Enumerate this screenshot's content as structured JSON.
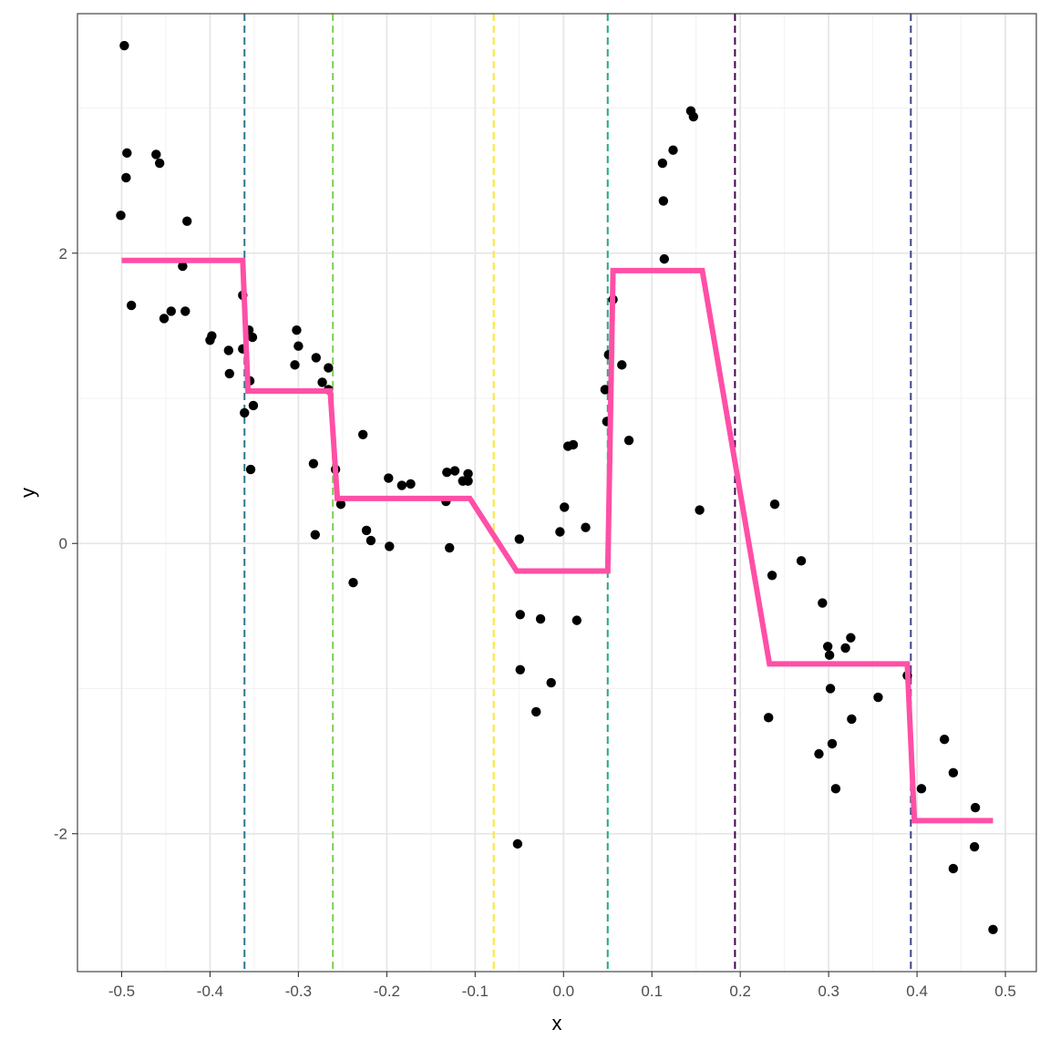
{
  "chart_data": {
    "type": "scatter",
    "title": "",
    "xlabel": "x",
    "ylabel": "y",
    "xlim": [
      -0.55,
      0.535
    ],
    "ylim": [
      -2.95,
      3.65
    ],
    "x_ticks": [
      -0.5,
      -0.4,
      -0.3,
      -0.2,
      -0.1,
      0.0,
      0.1,
      0.2,
      0.3,
      0.4,
      0.5
    ],
    "x_tick_labels": [
      "-0.5",
      "-0.4",
      "-0.3",
      "-0.2",
      "-0.1",
      "0.0",
      "0.1",
      "0.2",
      "0.3",
      "0.4",
      "0.5"
    ],
    "y_ticks": [
      -2,
      0,
      2
    ],
    "y_tick_labels": [
      "-2",
      "0",
      "2"
    ],
    "grid": true,
    "legend": "none",
    "colors": {
      "points": "#000000",
      "fit_line": "#ff4fa6",
      "panel_border": "#333333",
      "grid_major": "#e6e6e6",
      "grid_minor": "#f2f2f2"
    },
    "points": [
      [
        -0.497,
        3.43
      ],
      [
        -0.494,
        2.69
      ],
      [
        -0.495,
        2.52
      ],
      [
        -0.501,
        2.26
      ],
      [
        -0.461,
        2.68
      ],
      [
        -0.457,
        2.62
      ],
      [
        -0.426,
        2.22
      ],
      [
        -0.431,
        1.91
      ],
      [
        -0.489,
        1.64
      ],
      [
        -0.444,
        1.6
      ],
      [
        -0.428,
        1.6
      ],
      [
        -0.452,
        1.55
      ],
      [
        -0.398,
        1.43
      ],
      [
        -0.4,
        1.4
      ],
      [
        -0.379,
        1.33
      ],
      [
        -0.378,
        1.17
      ],
      [
        -0.363,
        1.71
      ],
      [
        -0.363,
        1.34
      ],
      [
        -0.356,
        1.47
      ],
      [
        -0.352,
        1.42
      ],
      [
        -0.355,
        1.12
      ],
      [
        -0.361,
        0.9
      ],
      [
        -0.351,
        0.95
      ],
      [
        -0.354,
        0.51
      ],
      [
        -0.302,
        1.47
      ],
      [
        -0.3,
        1.36
      ],
      [
        -0.304,
        1.23
      ],
      [
        -0.28,
        1.28
      ],
      [
        -0.273,
        1.11
      ],
      [
        -0.266,
        1.21
      ],
      [
        -0.266,
        1.06
      ],
      [
        -0.283,
        0.55
      ],
      [
        -0.258,
        0.51
      ],
      [
        -0.281,
        0.06
      ],
      [
        -0.252,
        0.27
      ],
      [
        -0.227,
        0.75
      ],
      [
        -0.223,
        0.09
      ],
      [
        -0.218,
        0.02
      ],
      [
        -0.238,
        -0.27
      ],
      [
        -0.198,
        0.45
      ],
      [
        -0.197,
        -0.02
      ],
      [
        -0.183,
        0.4
      ],
      [
        -0.173,
        0.41
      ],
      [
        -0.133,
        0.29
      ],
      [
        -0.132,
        0.49
      ],
      [
        -0.123,
        0.5
      ],
      [
        -0.114,
        0.43
      ],
      [
        -0.108,
        0.43
      ],
      [
        -0.108,
        0.48
      ],
      [
        -0.129,
        -0.03
      ],
      [
        -0.05,
        0.03
      ],
      [
        -0.049,
        -0.49
      ],
      [
        -0.049,
        -0.87
      ],
      [
        -0.052,
        -2.07
      ],
      [
        -0.026,
        -0.52
      ],
      [
        -0.031,
        -1.16
      ],
      [
        -0.014,
        -0.96
      ],
      [
        -0.004,
        0.08
      ],
      [
        0.001,
        0.25
      ],
      [
        0.005,
        0.67
      ],
      [
        0.011,
        0.68
      ],
      [
        0.025,
        0.11
      ],
      [
        0.015,
        -0.53
      ],
      [
        0.047,
        1.06
      ],
      [
        0.049,
        0.84
      ],
      [
        0.051,
        1.3
      ],
      [
        0.056,
        1.68
      ],
      [
        0.066,
        1.23
      ],
      [
        0.074,
        0.71
      ],
      [
        0.112,
        2.62
      ],
      [
        0.113,
        2.36
      ],
      [
        0.114,
        1.96
      ],
      [
        0.124,
        2.71
      ],
      [
        0.144,
        2.98
      ],
      [
        0.147,
        2.94
      ],
      [
        0.154,
        0.23
      ],
      [
        0.236,
        -0.22
      ],
      [
        0.239,
        0.27
      ],
      [
        0.232,
        -1.2
      ],
      [
        0.269,
        -0.12
      ],
      [
        0.293,
        -0.41
      ],
      [
        0.299,
        -0.71
      ],
      [
        0.301,
        -0.77
      ],
      [
        0.302,
        -1.0
      ],
      [
        0.304,
        -1.38
      ],
      [
        0.308,
        -1.69
      ],
      [
        0.289,
        -1.45
      ],
      [
        0.319,
        -0.72
      ],
      [
        0.325,
        -0.65
      ],
      [
        0.326,
        -1.21
      ],
      [
        0.356,
        -1.06
      ],
      [
        0.389,
        -0.91
      ],
      [
        0.405,
        -1.69
      ],
      [
        0.431,
        -1.35
      ],
      [
        0.441,
        -1.58
      ],
      [
        0.441,
        -2.24
      ],
      [
        0.466,
        -1.82
      ],
      [
        0.465,
        -2.09
      ],
      [
        0.486,
        -2.66
      ]
    ],
    "fit_line": [
      [
        -0.5,
        1.95
      ],
      [
        -0.363,
        1.95
      ],
      [
        -0.357,
        1.05
      ],
      [
        -0.264,
        1.05
      ],
      [
        -0.256,
        0.31
      ],
      [
        -0.106,
        0.31
      ],
      [
        -0.053,
        -0.19
      ],
      [
        0.05,
        -0.19
      ],
      [
        0.056,
        1.88
      ],
      [
        0.157,
        1.88
      ],
      [
        0.233,
        -0.83
      ],
      [
        0.389,
        -0.83
      ],
      [
        0.397,
        -1.91
      ],
      [
        0.486,
        -1.91
      ]
    ],
    "vlines": [
      {
        "x": -0.361,
        "color": "#2a788e"
      },
      {
        "x": -0.261,
        "color": "#7ad151"
      },
      {
        "x": -0.079,
        "color": "#fde725"
      },
      {
        "x": 0.05,
        "color": "#22a884"
      },
      {
        "x": 0.194,
        "color": "#440154"
      },
      {
        "x": 0.393,
        "color": "#414487"
      }
    ]
  }
}
